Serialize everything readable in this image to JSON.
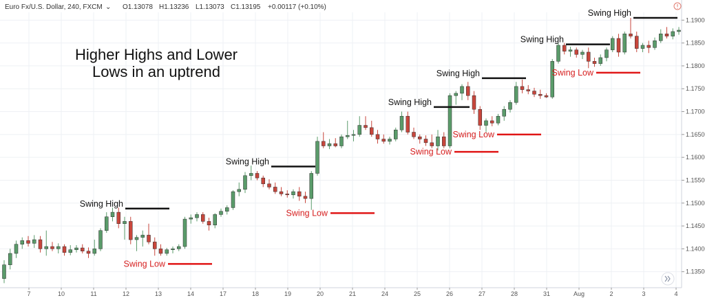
{
  "header": {
    "symbol": "Euro Fx/U.S. Dollar, 240, FXCM",
    "dropdown_glyph": "⌄",
    "open": "O1.13078",
    "high": "H1.13236",
    "low": "L1.13073",
    "close": "C1.13195",
    "change": "+0.00117 (+0.10%)"
  },
  "icons": {
    "header_dropdown": "chevron-down-icon",
    "top_right": "alert-circle-icon",
    "scroll": "double-chevron-right-icon"
  },
  "colors": {
    "up": "#5a9b6a",
    "down": "#c7463c",
    "swing_high_line": "#111111",
    "swing_low_line": "#e01515",
    "swing_low_text": "#d61f1f",
    "grid": "#eef0f4"
  },
  "chart_data": {
    "type": "candlestick",
    "title": "Higher Highs and Lower Lows in an uptrend",
    "title_lines": [
      "Higher Highs and Lower",
      "Lows in an uptrend"
    ],
    "xlabel": "",
    "ylabel": "",
    "ylim": [
      1.1315,
      1.1917
    ],
    "grid": true,
    "x_ticks": [
      "7",
      "10",
      "11",
      "12",
      "13",
      "14",
      "17",
      "18",
      "19",
      "20",
      "21",
      "24",
      "25",
      "26",
      "27",
      "28",
      "31",
      "Aug",
      "2",
      "3",
      "4"
    ],
    "y_ticks": [
      "1.13500",
      "1.14000",
      "1.14500",
      "1.15000",
      "1.15500",
      "1.16000",
      "1.16500",
      "1.17000",
      "1.17500",
      "1.18000",
      "1.18500",
      "1.19000"
    ],
    "candles": [
      {
        "o": 1.1335,
        "h": 1.1375,
        "l": 1.1325,
        "c": 1.1365
      },
      {
        "o": 1.1365,
        "h": 1.14,
        "l": 1.1355,
        "c": 1.139
      },
      {
        "o": 1.139,
        "h": 1.1418,
        "l": 1.138,
        "c": 1.141
      },
      {
        "o": 1.141,
        "h": 1.1425,
        "l": 1.14,
        "c": 1.1418
      },
      {
        "o": 1.1418,
        "h": 1.1428,
        "l": 1.1405,
        "c": 1.1412
      },
      {
        "o": 1.1412,
        "h": 1.143,
        "l": 1.1402,
        "c": 1.142
      },
      {
        "o": 1.142,
        "h": 1.1428,
        "l": 1.1392,
        "c": 1.14
      },
      {
        "o": 1.14,
        "h": 1.144,
        "l": 1.1385,
        "c": 1.1405
      },
      {
        "o": 1.1405,
        "h": 1.1415,
        "l": 1.1395,
        "c": 1.14
      },
      {
        "o": 1.14,
        "h": 1.1412,
        "l": 1.139,
        "c": 1.1405
      },
      {
        "o": 1.1405,
        "h": 1.141,
        "l": 1.1385,
        "c": 1.1392
      },
      {
        "o": 1.1392,
        "h": 1.1408,
        "l": 1.1386,
        "c": 1.1398
      },
      {
        "o": 1.1398,
        "h": 1.1408,
        "l": 1.1392,
        "c": 1.1402
      },
      {
        "o": 1.1402,
        "h": 1.141,
        "l": 1.139,
        "c": 1.1395
      },
      {
        "o": 1.1395,
        "h": 1.1403,
        "l": 1.138,
        "c": 1.139
      },
      {
        "o": 1.139,
        "h": 1.142,
        "l": 1.1385,
        "c": 1.14
      },
      {
        "o": 1.14,
        "h": 1.1445,
        "l": 1.1395,
        "c": 1.144
      },
      {
        "o": 1.144,
        "h": 1.148,
        "l": 1.1435,
        "c": 1.147
      },
      {
        "o": 1.147,
        "h": 1.149,
        "l": 1.146,
        "c": 1.148
      },
      {
        "o": 1.148,
        "h": 1.149,
        "l": 1.1445,
        "c": 1.1455
      },
      {
        "o": 1.1455,
        "h": 1.147,
        "l": 1.142,
        "c": 1.146
      },
      {
        "o": 1.146,
        "h": 1.147,
        "l": 1.141,
        "c": 1.142
      },
      {
        "o": 1.142,
        "h": 1.143,
        "l": 1.1395,
        "c": 1.1425
      },
      {
        "o": 1.1425,
        "h": 1.144,
        "l": 1.1405,
        "c": 1.143
      },
      {
        "o": 1.143,
        "h": 1.1455,
        "l": 1.141,
        "c": 1.1415
      },
      {
        "o": 1.1415,
        "h": 1.1425,
        "l": 1.1385,
        "c": 1.14
      },
      {
        "o": 1.14,
        "h": 1.141,
        "l": 1.1385,
        "c": 1.139
      },
      {
        "o": 1.139,
        "h": 1.1402,
        "l": 1.1385,
        "c": 1.1398
      },
      {
        "o": 1.1398,
        "h": 1.1405,
        "l": 1.139,
        "c": 1.14
      },
      {
        "o": 1.14,
        "h": 1.141,
        "l": 1.1395,
        "c": 1.1405
      },
      {
        "o": 1.1405,
        "h": 1.147,
        "l": 1.14,
        "c": 1.1465
      },
      {
        "o": 1.1465,
        "h": 1.1475,
        "l": 1.1455,
        "c": 1.1468
      },
      {
        "o": 1.1468,
        "h": 1.148,
        "l": 1.146,
        "c": 1.1475
      },
      {
        "o": 1.1475,
        "h": 1.148,
        "l": 1.1455,
        "c": 1.146
      },
      {
        "o": 1.146,
        "h": 1.1468,
        "l": 1.144,
        "c": 1.1452
      },
      {
        "o": 1.1452,
        "h": 1.1478,
        "l": 1.1445,
        "c": 1.1475
      },
      {
        "o": 1.1475,
        "h": 1.1488,
        "l": 1.147,
        "c": 1.1482
      },
      {
        "o": 1.1482,
        "h": 1.1495,
        "l": 1.1475,
        "c": 1.149
      },
      {
        "o": 1.149,
        "h": 1.1528,
        "l": 1.1485,
        "c": 1.1525
      },
      {
        "o": 1.1525,
        "h": 1.1545,
        "l": 1.1515,
        "c": 1.153
      },
      {
        "o": 1.153,
        "h": 1.1568,
        "l": 1.1522,
        "c": 1.156
      },
      {
        "o": 1.156,
        "h": 1.1582,
        "l": 1.155,
        "c": 1.1565
      },
      {
        "o": 1.1565,
        "h": 1.157,
        "l": 1.155,
        "c": 1.1555
      },
      {
        "o": 1.1555,
        "h": 1.156,
        "l": 1.1535,
        "c": 1.1542
      },
      {
        "o": 1.1542,
        "h": 1.1552,
        "l": 1.153,
        "c": 1.1535
      },
      {
        "o": 1.1535,
        "h": 1.1545,
        "l": 1.152,
        "c": 1.1525
      },
      {
        "o": 1.1525,
        "h": 1.1535,
        "l": 1.1515,
        "c": 1.152
      },
      {
        "o": 1.152,
        "h": 1.1528,
        "l": 1.1512,
        "c": 1.1518
      },
      {
        "o": 1.1518,
        "h": 1.153,
        "l": 1.151,
        "c": 1.1525
      },
      {
        "o": 1.1525,
        "h": 1.1535,
        "l": 1.1505,
        "c": 1.1515
      },
      {
        "o": 1.1515,
        "h": 1.1525,
        "l": 1.15,
        "c": 1.151
      },
      {
        "o": 1.151,
        "h": 1.157,
        "l": 1.1485,
        "c": 1.1565
      },
      {
        "o": 1.1565,
        "h": 1.1645,
        "l": 1.156,
        "c": 1.1635
      },
      {
        "o": 1.1635,
        "h": 1.1655,
        "l": 1.162,
        "c": 1.1625
      },
      {
        "o": 1.1625,
        "h": 1.164,
        "l": 1.1618,
        "c": 1.163
      },
      {
        "o": 1.163,
        "h": 1.1642,
        "l": 1.1622,
        "c": 1.1625
      },
      {
        "o": 1.1625,
        "h": 1.165,
        "l": 1.162,
        "c": 1.1645
      },
      {
        "o": 1.1645,
        "h": 1.168,
        "l": 1.164,
        "c": 1.1648
      },
      {
        "o": 1.1648,
        "h": 1.166,
        "l": 1.1635,
        "c": 1.165
      },
      {
        "o": 1.165,
        "h": 1.169,
        "l": 1.1645,
        "c": 1.167
      },
      {
        "o": 1.167,
        "h": 1.169,
        "l": 1.166,
        "c": 1.1665
      },
      {
        "o": 1.1665,
        "h": 1.168,
        "l": 1.1645,
        "c": 1.165
      },
      {
        "o": 1.165,
        "h": 1.166,
        "l": 1.163,
        "c": 1.164
      },
      {
        "o": 1.164,
        "h": 1.165,
        "l": 1.163,
        "c": 1.1635
      },
      {
        "o": 1.1635,
        "h": 1.1645,
        "l": 1.1628,
        "c": 1.164
      },
      {
        "o": 1.164,
        "h": 1.1665,
        "l": 1.1635,
        "c": 1.166
      },
      {
        "o": 1.166,
        "h": 1.17,
        "l": 1.1655,
        "c": 1.169
      },
      {
        "o": 1.169,
        "h": 1.17,
        "l": 1.165,
        "c": 1.1655
      },
      {
        "o": 1.1655,
        "h": 1.1665,
        "l": 1.164,
        "c": 1.1645
      },
      {
        "o": 1.1645,
        "h": 1.165,
        "l": 1.163,
        "c": 1.164
      },
      {
        "o": 1.164,
        "h": 1.1648,
        "l": 1.1625,
        "c": 1.1632
      },
      {
        "o": 1.1632,
        "h": 1.165,
        "l": 1.162,
        "c": 1.1625
      },
      {
        "o": 1.1625,
        "h": 1.166,
        "l": 1.1615,
        "c": 1.1645
      },
      {
        "o": 1.1645,
        "h": 1.1655,
        "l": 1.162,
        "c": 1.1625
      },
      {
        "o": 1.1625,
        "h": 1.174,
        "l": 1.162,
        "c": 1.1735
      },
      {
        "o": 1.1735,
        "h": 1.1745,
        "l": 1.1715,
        "c": 1.174
      },
      {
        "o": 1.174,
        "h": 1.176,
        "l": 1.1725,
        "c": 1.1755
      },
      {
        "o": 1.1755,
        "h": 1.1765,
        "l": 1.1725,
        "c": 1.1735
      },
      {
        "o": 1.1735,
        "h": 1.1745,
        "l": 1.1695,
        "c": 1.1705
      },
      {
        "o": 1.1705,
        "h": 1.1712,
        "l": 1.166,
        "c": 1.167
      },
      {
        "o": 1.167,
        "h": 1.1685,
        "l": 1.1655,
        "c": 1.168
      },
      {
        "o": 1.168,
        "h": 1.169,
        "l": 1.1668,
        "c": 1.1675
      },
      {
        "o": 1.1675,
        "h": 1.1695,
        "l": 1.167,
        "c": 1.169
      },
      {
        "o": 1.169,
        "h": 1.1712,
        "l": 1.168,
        "c": 1.1705
      },
      {
        "o": 1.1705,
        "h": 1.1725,
        "l": 1.1698,
        "c": 1.172
      },
      {
        "o": 1.172,
        "h": 1.1765,
        "l": 1.1715,
        "c": 1.1755
      },
      {
        "o": 1.1755,
        "h": 1.177,
        "l": 1.174,
        "c": 1.1748
      },
      {
        "o": 1.1748,
        "h": 1.1758,
        "l": 1.1738,
        "c": 1.1745
      },
      {
        "o": 1.1745,
        "h": 1.1752,
        "l": 1.1732,
        "c": 1.1738
      },
      {
        "o": 1.1738,
        "h": 1.1748,
        "l": 1.1728,
        "c": 1.1735
      },
      {
        "o": 1.1735,
        "h": 1.174,
        "l": 1.173,
        "c": 1.1732
      },
      {
        "o": 1.1732,
        "h": 1.1815,
        "l": 1.1728,
        "c": 1.181
      },
      {
        "o": 1.181,
        "h": 1.185,
        "l": 1.1805,
        "c": 1.1845
      },
      {
        "o": 1.1845,
        "h": 1.185,
        "l": 1.1825,
        "c": 1.1832
      },
      {
        "o": 1.1832,
        "h": 1.1842,
        "l": 1.182,
        "c": 1.1835
      },
      {
        "o": 1.1835,
        "h": 1.184,
        "l": 1.1818,
        "c": 1.1825
      },
      {
        "o": 1.1825,
        "h": 1.1835,
        "l": 1.1815,
        "c": 1.183
      },
      {
        "o": 1.183,
        "h": 1.184,
        "l": 1.1795,
        "c": 1.181
      },
      {
        "o": 1.181,
        "h": 1.1818,
        "l": 1.1798,
        "c": 1.1805
      },
      {
        "o": 1.1805,
        "h": 1.1825,
        "l": 1.18,
        "c": 1.1818
      },
      {
        "o": 1.1818,
        "h": 1.184,
        "l": 1.181,
        "c": 1.1835
      },
      {
        "o": 1.1835,
        "h": 1.1865,
        "l": 1.183,
        "c": 1.186
      },
      {
        "o": 1.186,
        "h": 1.187,
        "l": 1.182,
        "c": 1.183
      },
      {
        "o": 1.183,
        "h": 1.1875,
        "l": 1.1825,
        "c": 1.187
      },
      {
        "o": 1.187,
        "h": 1.1905,
        "l": 1.186,
        "c": 1.1865
      },
      {
        "o": 1.1865,
        "h": 1.1875,
        "l": 1.183,
        "c": 1.1838
      },
      {
        "o": 1.1838,
        "h": 1.185,
        "l": 1.183,
        "c": 1.1845
      },
      {
        "o": 1.1845,
        "h": 1.1855,
        "l": 1.1828,
        "c": 1.184
      },
      {
        "o": 1.184,
        "h": 1.1862,
        "l": 1.1835,
        "c": 1.1855
      },
      {
        "o": 1.1855,
        "h": 1.188,
        "l": 1.185,
        "c": 1.187
      },
      {
        "o": 1.187,
        "h": 1.1885,
        "l": 1.186,
        "c": 1.1865
      },
      {
        "o": 1.1865,
        "h": 1.1882,
        "l": 1.1858,
        "c": 1.1875
      },
      {
        "o": 1.1875,
        "h": 1.1885,
        "l": 1.1868,
        "c": 1.1878
      }
    ],
    "annotations": [
      {
        "label": "Swing High",
        "kind": "high",
        "price": 1.1488,
        "x_start": 182,
        "x_end": 246
      },
      {
        "label": "Swing Low",
        "kind": "low",
        "price": 1.1367,
        "x_start": 244,
        "x_end": 308
      },
      {
        "label": "Swing High",
        "kind": "high",
        "price": 1.158,
        "x_start": 394,
        "x_end": 458
      },
      {
        "label": "Swing Low",
        "kind": "low",
        "price": 1.1478,
        "x_start": 480,
        "x_end": 544
      },
      {
        "label": "Swing High",
        "kind": "high",
        "price": 1.171,
        "x_start": 630,
        "x_end": 682
      },
      {
        "label": "Swing Low",
        "kind": "low",
        "price": 1.1612,
        "x_start": 660,
        "x_end": 724
      },
      {
        "label": "Swing High",
        "kind": "high",
        "price": 1.1773,
        "x_start": 700,
        "x_end": 764
      },
      {
        "label": "Swing Low",
        "kind": "low",
        "price": 1.165,
        "x_start": 722,
        "x_end": 786
      },
      {
        "label": "Swing High",
        "kind": "high",
        "price": 1.1847,
        "x_start": 822,
        "x_end": 886
      },
      {
        "label": "Swing Low",
        "kind": "low",
        "price": 1.1785,
        "x_start": 866,
        "x_end": 930
      },
      {
        "label": "Swing High",
        "kind": "high",
        "price": 1.1905,
        "x_start": 920,
        "x_end": 984
      }
    ]
  }
}
